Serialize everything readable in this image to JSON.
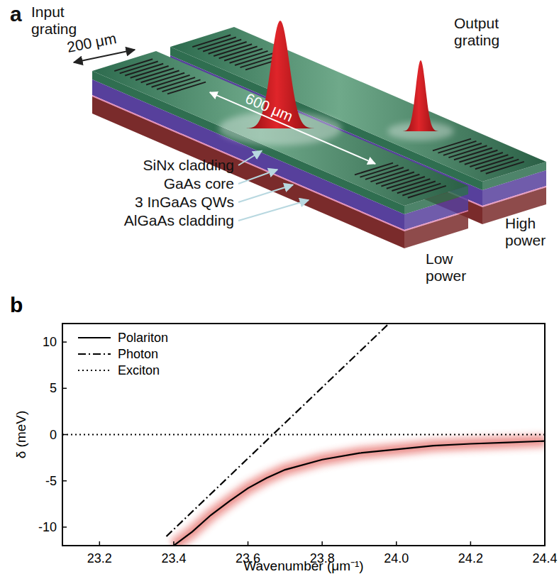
{
  "panel_a": {
    "label": "a",
    "input_grating": [
      "Input",
      "grating"
    ],
    "output_grating": [
      "Output",
      "grating"
    ],
    "grating_length": "200 μm",
    "waveguide_length": "600 μm",
    "layers": [
      "SiNx cladding",
      "GaAs core",
      "3 InGaAs QWs",
      "AlGaAs cladding"
    ],
    "high_power": [
      "High",
      "power"
    ],
    "low_power": [
      "Low",
      "power"
    ]
  },
  "chart_data": {
    "type": "line",
    "panel_label": "b",
    "x_label": "Wavenumber (μm⁻¹)",
    "y_label": "δ (meV)",
    "xlim": [
      23.1,
      24.4
    ],
    "xticks": [
      23.2,
      23.4,
      23.6,
      23.8,
      {
        "value": 24,
        "label": "24.0"
      },
      24.2,
      24.4
    ],
    "ylim": [
      -12,
      12
    ],
    "yticks": [
      -10,
      -5,
      0,
      5,
      10
    ],
    "legend": "upper left",
    "series": [
      {
        "name": "Polariton",
        "color": "#000000",
        "line_style": "solid",
        "x": [
          23.4,
          23.45,
          23.5,
          23.55,
          23.6,
          23.65,
          23.7,
          23.8,
          23.9,
          24.0,
          24.1,
          24.2,
          24.3,
          24.4
        ],
        "values": [
          -12,
          -10.5,
          -8.7,
          -7.2,
          -5.8,
          -4.7,
          -3.8,
          -2.7,
          -2.0,
          -1.6,
          -1.2,
          -1.0,
          -0.85,
          -0.7
        ]
      },
      {
        "name": "Photon",
        "color": "#000000",
        "line_style": "dashdot",
        "x": [
          23.38,
          23.98
        ],
        "values": [
          -11,
          12
        ]
      },
      {
        "name": "Exciton",
        "color": "#000000",
        "line_style": "dotted",
        "x": [
          23.1,
          24.4
        ],
        "values": [
          0,
          0
        ]
      }
    ]
  }
}
